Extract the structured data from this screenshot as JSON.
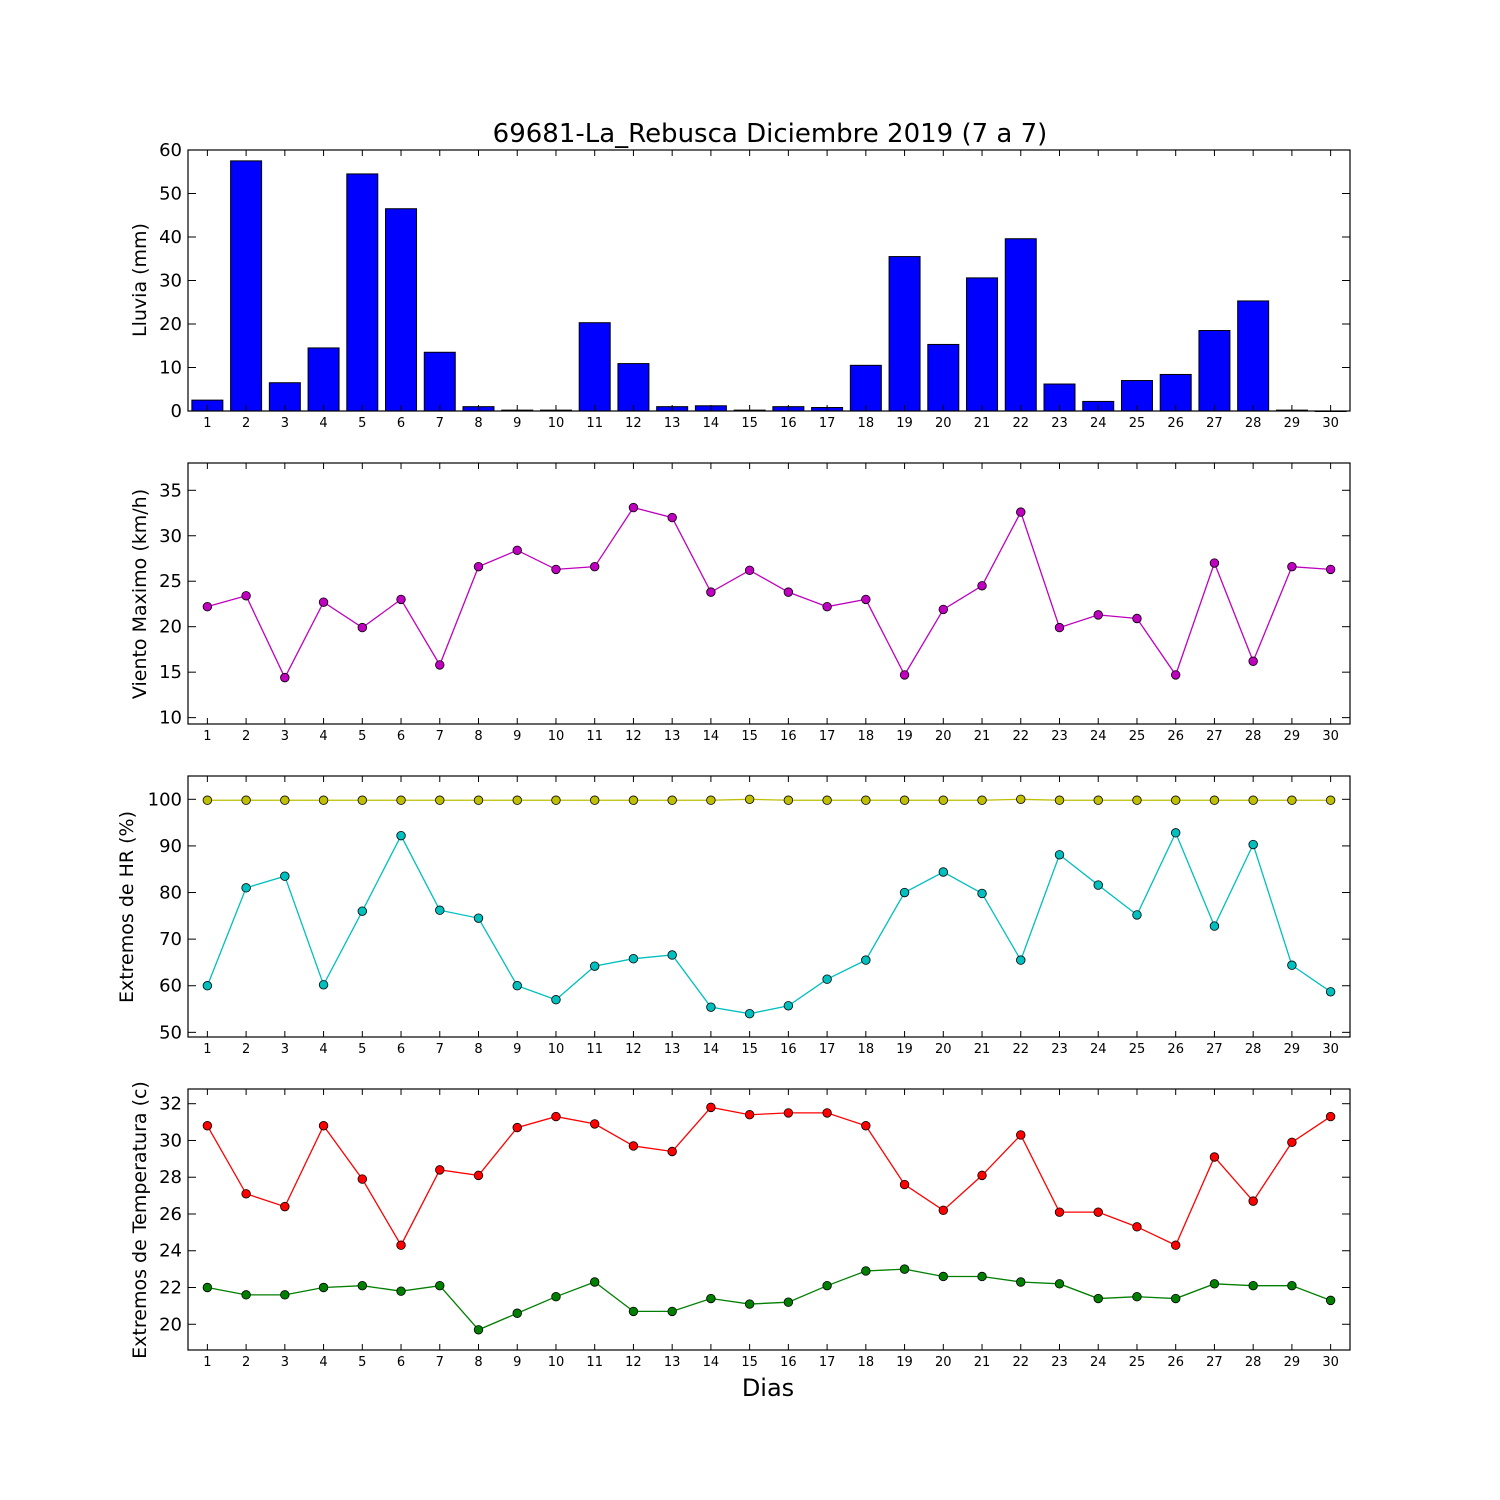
{
  "chart_data": [
    {
      "type": "bar",
      "title": "69681-La_Rebusca Diciembre 2019  (7 a 7)",
      "ylabel": "Lluvia (mm)",
      "xlabel": "",
      "ylim": [
        0,
        60
      ],
      "yticks": [
        0,
        10,
        20,
        30,
        40,
        50,
        60
      ],
      "categories": [
        1,
        2,
        3,
        4,
        5,
        6,
        7,
        8,
        9,
        10,
        11,
        12,
        13,
        14,
        15,
        16,
        17,
        18,
        19,
        20,
        21,
        22,
        23,
        24,
        25,
        26,
        27,
        28,
        29,
        30
      ],
      "values": [
        2.5,
        57.5,
        6.5,
        14.5,
        54.5,
        46.5,
        13.5,
        1.0,
        0.2,
        0.2,
        20.3,
        10.9,
        1.0,
        1.2,
        0.2,
        1.0,
        0.8,
        10.5,
        35.5,
        15.3,
        30.6,
        39.6,
        6.2,
        2.2,
        7.0,
        8.4,
        18.5,
        25.3,
        0.2,
        0.0
      ],
      "color": "#0000ff",
      "grid": false
    },
    {
      "type": "line",
      "title": "",
      "ylabel": "Viento Maximo (km/h)",
      "xlabel": "",
      "ylim": [
        9.3,
        38
      ],
      "yticks": [
        10,
        15,
        20,
        25,
        30,
        35
      ],
      "x": [
        1,
        2,
        3,
        4,
        5,
        6,
        7,
        8,
        9,
        10,
        11,
        12,
        13,
        14,
        15,
        16,
        17,
        18,
        19,
        20,
        21,
        22,
        23,
        24,
        25,
        26,
        27,
        28,
        29,
        30
      ],
      "series": [
        {
          "values": [
            22.2,
            23.4,
            14.4,
            22.7,
            19.9,
            23.0,
            15.8,
            26.6,
            28.4,
            26.3,
            26.6,
            33.1,
            32.0,
            23.8,
            26.2,
            23.8,
            22.2,
            23.0,
            14.7,
            21.9,
            24.5,
            32.6,
            19.9,
            21.3,
            20.9,
            14.7,
            27.0,
            16.2,
            26.6,
            26.3
          ],
          "color": "#bf00bf"
        }
      ],
      "grid": false
    },
    {
      "type": "line",
      "title": "",
      "ylabel": "Extremos de HR (%)",
      "xlabel": "",
      "ylim": [
        49,
        105
      ],
      "yticks": [
        50,
        60,
        70,
        80,
        90,
        100
      ],
      "x": [
        1,
        2,
        3,
        4,
        5,
        6,
        7,
        8,
        9,
        10,
        11,
        12,
        13,
        14,
        15,
        16,
        17,
        18,
        19,
        20,
        21,
        22,
        23,
        24,
        25,
        26,
        27,
        28,
        29,
        30
      ],
      "series": [
        {
          "values": [
            99.8,
            99.8,
            99.8,
            99.8,
            99.8,
            99.8,
            99.8,
            99.8,
            99.8,
            99.8,
            99.8,
            99.8,
            99.8,
            99.8,
            100.0,
            99.8,
            99.8,
            99.8,
            99.8,
            99.8,
            99.8,
            100.0,
            99.8,
            99.8,
            99.8,
            99.8,
            99.8,
            99.8,
            99.8,
            99.8
          ],
          "color": "#bfbf00"
        },
        {
          "values": [
            60.0,
            81.0,
            83.5,
            60.2,
            76.0,
            92.2,
            76.2,
            74.5,
            60.0,
            57.0,
            64.2,
            65.8,
            66.6,
            55.4,
            54.0,
            55.7,
            61.4,
            65.5,
            80.0,
            84.4,
            79.8,
            65.5,
            88.1,
            81.6,
            75.2,
            92.8,
            72.8,
            90.3,
            64.4,
            58.7
          ],
          "color": "#00bfbf"
        }
      ],
      "grid": false
    },
    {
      "type": "line",
      "title": "",
      "ylabel": "Extremos de Temperatura (c)",
      "xlabel": "Dias",
      "ylim": [
        18.6,
        32.8
      ],
      "yticks": [
        20,
        22,
        24,
        26,
        28,
        30,
        32
      ],
      "x": [
        1,
        2,
        3,
        4,
        5,
        6,
        7,
        8,
        9,
        10,
        11,
        12,
        13,
        14,
        15,
        16,
        17,
        18,
        19,
        20,
        21,
        22,
        23,
        24,
        25,
        26,
        27,
        28,
        29,
        30
      ],
      "series": [
        {
          "values": [
            30.8,
            27.1,
            26.4,
            30.8,
            27.9,
            24.3,
            28.4,
            28.1,
            30.7,
            31.3,
            30.9,
            29.7,
            29.4,
            31.8,
            31.4,
            31.5,
            31.5,
            30.8,
            27.6,
            26.2,
            28.1,
            30.3,
            26.1,
            26.1,
            25.3,
            24.3,
            29.1,
            26.7,
            29.9,
            31.3
          ],
          "color": "#ff0000"
        },
        {
          "values": [
            22.0,
            21.6,
            21.6,
            22.0,
            22.1,
            21.8,
            22.1,
            19.7,
            20.6,
            21.5,
            22.3,
            20.7,
            20.7,
            21.4,
            21.1,
            21.2,
            22.1,
            22.9,
            23.0,
            22.6,
            22.6,
            22.3,
            22.2,
            21.4,
            21.5,
            21.4,
            22.2,
            22.1,
            22.1,
            21.3
          ],
          "color": "#007f00"
        }
      ],
      "grid": false
    }
  ]
}
